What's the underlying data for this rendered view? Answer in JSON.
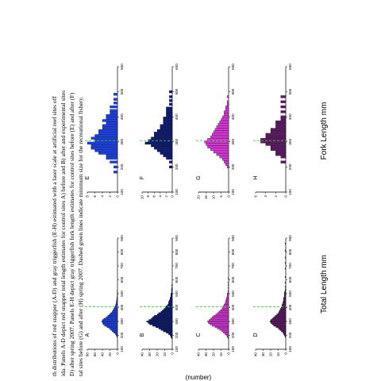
{
  "caption": {
    "lines": [
      "th distributions of red snapper (A-D) and gray triggerfish (E-H) estimated with a laser scale at artificial reef sites off",
      "ida. Panels A-D depict red snapper total length estimates for control sites A) before and B) after and experimental sites",
      "D) after spring 2007. Panels E-H depict gray triggerfish fork length estimates for control sites before (E) and after (F)",
      "tal sites before (G) and after (H) spring 2007. Dashed green lines indicate minimum size for the recreational fishery."
    ]
  },
  "axes": {
    "left_xlabel": "Total Length mm",
    "right_xlabel": "Fork Length mm",
    "bottom_cutoff_label": "(number)"
  },
  "colors": {
    "A": "#1d3fe0",
    "B": "#0d1a6e",
    "C": "#d535d5",
    "D": "#5c1a63",
    "E": "#1d3fe0",
    "F": "#0d1a6e",
    "G": "#d535d5",
    "H": "#5c1a63",
    "legal_line": "#3cc83c"
  },
  "chart_data": [
    {
      "panel": "A",
      "type": "bar",
      "xlim": [
        100,
        900
      ],
      "ylim": [
        0,
        80
      ],
      "x_ticks": [
        "100",
        "200",
        "300",
        "400",
        "500",
        "600",
        "700",
        "800",
        "900"
      ],
      "y_ticks": [
        "0",
        "20",
        "40",
        "60",
        "80"
      ],
      "legal_size": 406,
      "x": [
        190,
        200,
        210,
        220,
        230,
        240,
        250,
        260,
        270,
        280,
        290,
        300,
        310,
        320,
        330,
        340,
        350,
        360,
        370,
        380,
        390,
        400,
        410,
        420,
        430,
        440,
        450,
        460,
        470,
        480,
        490,
        500,
        510,
        520
      ],
      "values": [
        2,
        4,
        6,
        10,
        14,
        18,
        22,
        28,
        34,
        38,
        40,
        42,
        40,
        36,
        30,
        26,
        22,
        18,
        14,
        12,
        10,
        8,
        6,
        5,
        4,
        3,
        3,
        2,
        2,
        1,
        1,
        1,
        1,
        1
      ]
    },
    {
      "panel": "B",
      "type": "bar",
      "xlim": [
        100,
        900
      ],
      "ylim": [
        0,
        40
      ],
      "x_ticks": [
        "100",
        "200",
        "300",
        "400",
        "500",
        "600",
        "700",
        "800",
        "900"
      ],
      "y_ticks": [
        "0",
        "10",
        "20",
        "30",
        "40"
      ],
      "legal_size": 406,
      "x": [
        180,
        190,
        200,
        210,
        220,
        230,
        240,
        250,
        260,
        270,
        280,
        290,
        300,
        310,
        320,
        330,
        340,
        350,
        360,
        370,
        380,
        390,
        400,
        410,
        420,
        430,
        440,
        450,
        460,
        470,
        480,
        490,
        500,
        510,
        520,
        530,
        540,
        560
      ],
      "values": [
        1,
        2,
        3,
        5,
        8,
        12,
        15,
        18,
        22,
        26,
        30,
        32,
        34,
        31,
        28,
        26,
        24,
        20,
        18,
        15,
        13,
        11,
        9,
        8,
        6,
        5,
        5,
        4,
        3,
        3,
        2,
        2,
        2,
        1,
        1,
        1,
        1,
        1
      ]
    },
    {
      "panel": "C",
      "type": "bar",
      "xlim": [
        100,
        900
      ],
      "ylim": [
        0,
        40
      ],
      "x_ticks": [
        "100",
        "200",
        "300",
        "400",
        "500",
        "600",
        "700",
        "800",
        "900"
      ],
      "y_ticks": [
        "0",
        "10",
        "20",
        "30",
        "40"
      ],
      "legal_size": 406,
      "x": [
        180,
        190,
        200,
        210,
        220,
        230,
        240,
        250,
        260,
        270,
        280,
        290,
        300,
        310,
        320,
        330,
        340,
        350,
        360,
        370,
        380,
        390,
        400,
        410,
        420,
        430,
        440,
        450,
        460,
        470,
        480,
        490,
        500,
        510,
        520,
        540,
        560,
        580,
        610
      ],
      "values": [
        1,
        2,
        3,
        5,
        7,
        9,
        12,
        15,
        18,
        22,
        25,
        27,
        28,
        26,
        24,
        22,
        20,
        17,
        15,
        13,
        11,
        9,
        8,
        7,
        6,
        5,
        4,
        4,
        3,
        3,
        2,
        2,
        2,
        1,
        1,
        1,
        1,
        1,
        1
      ]
    },
    {
      "panel": "D",
      "type": "bar",
      "xlim": [
        100,
        900
      ],
      "ylim": [
        0,
        40
      ],
      "x_ticks": [
        "100",
        "200",
        "300",
        "400",
        "500",
        "600",
        "700",
        "800",
        "900"
      ],
      "y_ticks": [
        "0",
        "10",
        "20",
        "30",
        "40"
      ],
      "legal_size": 406,
      "x": [
        190,
        200,
        210,
        220,
        230,
        240,
        250,
        260,
        270,
        280,
        290,
        300,
        310,
        320,
        330,
        340,
        350,
        360,
        370,
        380,
        390,
        400,
        410,
        420,
        430,
        440,
        450,
        460,
        470,
        480,
        490,
        500,
        510,
        520,
        530,
        550,
        580,
        620,
        680,
        720,
        760,
        810,
        860
      ],
      "values": [
        1,
        2,
        3,
        4,
        6,
        8,
        10,
        13,
        16,
        18,
        20,
        21,
        20,
        18,
        16,
        14,
        12,
        10,
        9,
        8,
        7,
        6,
        5,
        5,
        4,
        4,
        3,
        3,
        3,
        2,
        2,
        2,
        2,
        1,
        1,
        1,
        1,
        1,
        1,
        1,
        1,
        1,
        1
      ]
    },
    {
      "panel": "E",
      "type": "bar",
      "xlim": [
        100,
        600
      ],
      "ylim": [
        0,
        8
      ],
      "x_ticks": [
        "100",
        "200",
        "300",
        "400",
        "500",
        "600"
      ],
      "y_ticks": [
        "0",
        "2",
        "4",
        "6",
        "8"
      ],
      "legal_size": 305,
      "x": [
        180,
        200,
        220,
        235,
        245,
        255,
        265,
        275,
        285,
        295,
        305,
        315,
        325,
        335,
        345,
        355,
        365,
        375,
        385,
        395,
        405,
        415,
        425,
        440,
        455,
        470,
        490
      ],
      "values": [
        1,
        1,
        2,
        3,
        3,
        5,
        6,
        7,
        7,
        8,
        6,
        7,
        6,
        5,
        5,
        4,
        4,
        3,
        4,
        3,
        3,
        2,
        2,
        2,
        1,
        1,
        1
      ]
    },
    {
      "panel": "F",
      "type": "bar",
      "xlim": [
        100,
        600
      ],
      "ylim": [
        0,
        10
      ],
      "x_ticks": [
        "100",
        "200",
        "300",
        "400",
        "500",
        "600"
      ],
      "y_ticks": [
        "0",
        "2",
        "4",
        "6",
        "8",
        "10"
      ],
      "legal_size": 305,
      "x": [
        200,
        220,
        235,
        245,
        255,
        265,
        275,
        285,
        295,
        305,
        315,
        325,
        335,
        345,
        355,
        365,
        375,
        385,
        395,
        405,
        415,
        425,
        435,
        450,
        465,
        480,
        500
      ],
      "values": [
        1,
        1,
        2,
        3,
        4,
        5,
        6,
        7,
        9,
        8,
        7,
        6,
        6,
        5,
        4,
        4,
        3,
        3,
        3,
        2,
        2,
        2,
        2,
        1,
        1,
        1,
        1
      ]
    },
    {
      "panel": "G",
      "type": "bar",
      "xlim": [
        100,
        600
      ],
      "ylim": [
        0,
        20
      ],
      "x_ticks": [
        "100",
        "200",
        "300",
        "400",
        "500",
        "600"
      ],
      "y_ticks": [
        "0",
        "5",
        "10",
        "15",
        "20"
      ],
      "legal_size": 305,
      "x": [
        200,
        210,
        220,
        230,
        240,
        250,
        260,
        270,
        280,
        290,
        300,
        310,
        320,
        330,
        340,
        350,
        360,
        370,
        380,
        390,
        400,
        410,
        420,
        430,
        440,
        450,
        460,
        480
      ],
      "values": [
        1,
        2,
        3,
        4,
        6,
        8,
        10,
        12,
        14,
        15,
        16,
        14,
        12,
        11,
        10,
        9,
        8,
        7,
        6,
        5,
        4,
        3,
        3,
        2,
        2,
        1,
        1,
        1
      ]
    },
    {
      "panel": "H",
      "type": "bar",
      "xlim": [
        100,
        600
      ],
      "ylim": [
        0,
        6
      ],
      "x_ticks": [
        "100",
        "200",
        "300",
        "400",
        "500",
        "600"
      ],
      "y_ticks": [
        "0",
        "2",
        "4",
        "6"
      ],
      "legal_size": 305,
      "x": [
        220,
        240,
        250,
        260,
        270,
        280,
        290,
        300,
        310,
        320,
        330,
        340,
        350,
        360,
        370,
        380,
        390,
        400,
        420,
        440,
        460,
        480
      ],
      "values": [
        1,
        1,
        2,
        2,
        3,
        3,
        4,
        5,
        5,
        4,
        4,
        3,
        3,
        2,
        2,
        2,
        1,
        1,
        1,
        1,
        1,
        1
      ]
    }
  ]
}
